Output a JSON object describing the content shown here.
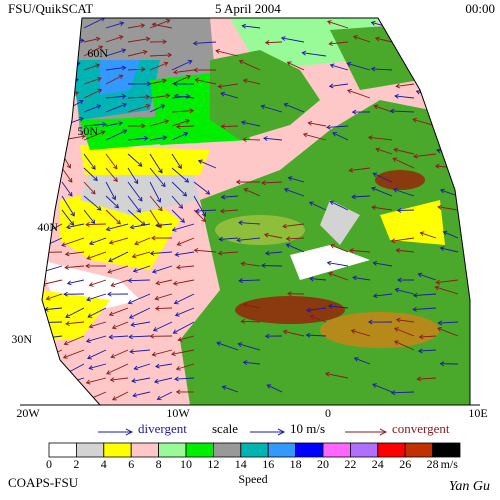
{
  "header": {
    "title": "FSU/QuikSCAT",
    "date": "5 April 2004",
    "time": "00:00"
  },
  "map": {
    "lat_labels": [
      "60N",
      "50N",
      "40N",
      "30N"
    ],
    "lon_labels": [
      "20W",
      "10W",
      "0",
      "10E"
    ]
  },
  "key": {
    "divergent": "divergent",
    "scale": "scale",
    "scale_value": "10 m/s",
    "convergent": "convergent"
  },
  "colorbar": {
    "ticks": [
      "0",
      "2",
      "4",
      "6",
      "8",
      "10",
      "12",
      "14",
      "16",
      "18",
      "20",
      "22",
      "24",
      "26",
      "28"
    ],
    "unit": "m/s",
    "label": "Speed",
    "colors": [
      "#ffffff",
      "#d3d3d3",
      "#ffff00",
      "#ffc8c8",
      "#98fb98",
      "#00ee00",
      "#999999",
      "#00b4b4",
      "#3399ff",
      "#0000ff",
      "#ff66ff",
      "#b070ff",
      "#ff0000",
      "#c03000",
      "#000000"
    ]
  },
  "footer": {
    "left": "COAPS-FSU",
    "right": "Yan Gu"
  }
}
